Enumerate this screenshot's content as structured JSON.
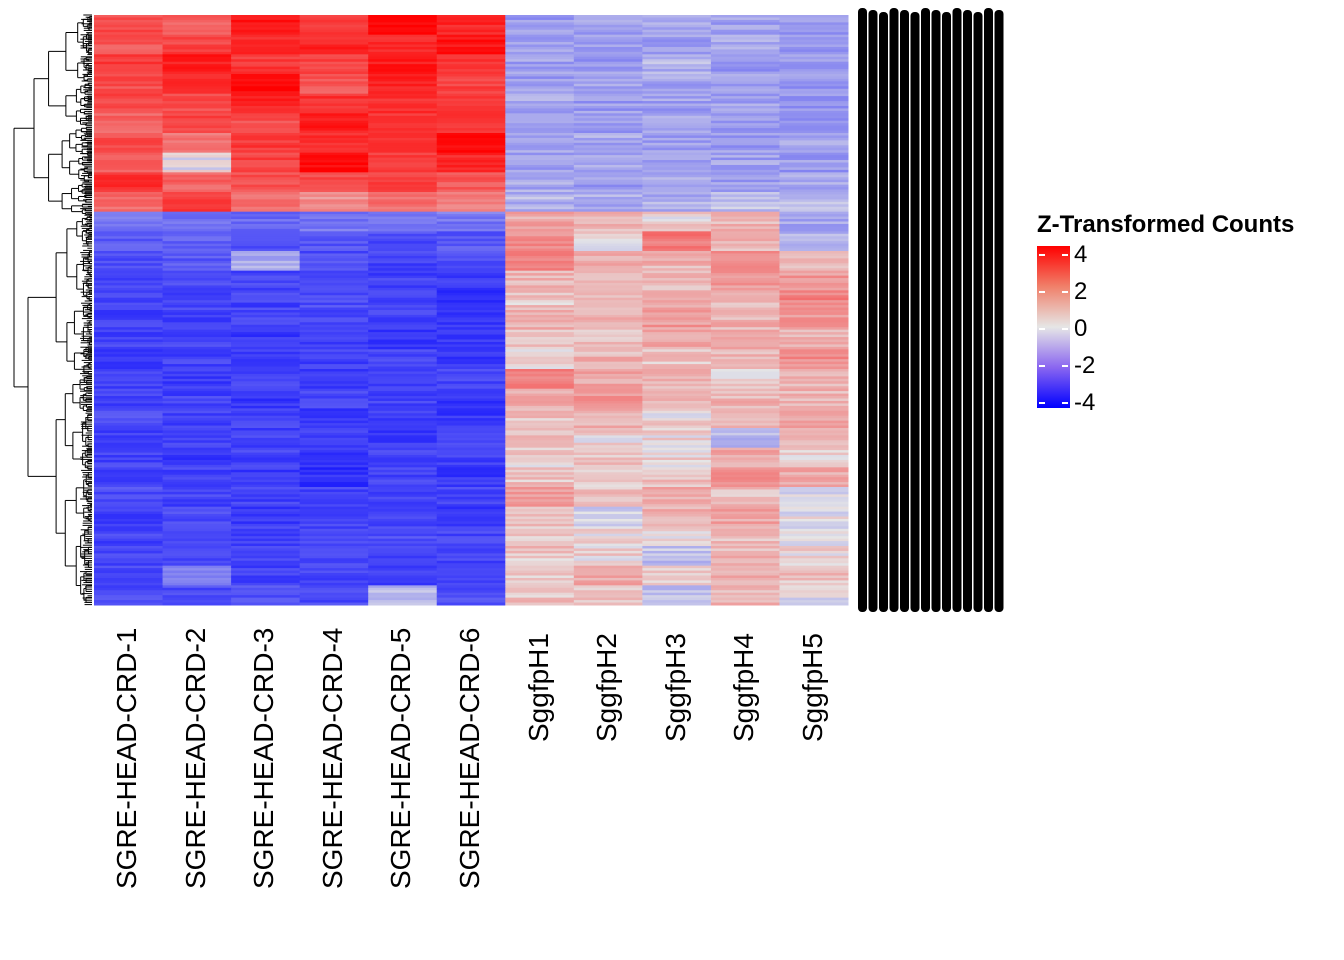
{
  "chart_data": {
    "type": "heatmap",
    "title": "",
    "columns": [
      "SGRE-HEAD-CRD-1",
      "SGRE-HEAD-CRD-2",
      "SGRE-HEAD-CRD-3",
      "SGRE-HEAD-CRD-4",
      "SGRE-HEAD-CRD-5",
      "SGRE-HEAD-CRD-6",
      "SggfpH1",
      "SggfpH2",
      "SggfpH3",
      "SggfpH4",
      "SggfpH5"
    ],
    "row_labels_legible": false,
    "row_dendrogram": true,
    "values": [
      [
        2.5,
        2.0,
        3.5,
        2.8,
        3.8,
        3.2,
        -1.0,
        -0.9,
        -0.8,
        -0.9,
        -1.0
      ],
      [
        2.2,
        2.6,
        3.0,
        3.2,
        3.0,
        3.6,
        -0.8,
        -1.0,
        -0.9,
        -0.8,
        -1.1
      ],
      [
        2.8,
        3.4,
        2.8,
        2.6,
        3.4,
        3.0,
        -0.9,
        -1.0,
        -0.6,
        -1.0,
        -0.9
      ],
      [
        2.4,
        3.0,
        3.8,
        2.2,
        3.2,
        2.6,
        -1.0,
        -0.9,
        -0.8,
        -0.9,
        -1.0
      ],
      [
        2.6,
        2.4,
        3.2,
        3.0,
        3.0,
        2.8,
        -0.8,
        -1.0,
        -0.9,
        -0.9,
        -1.1
      ],
      [
        2.0,
        2.6,
        2.4,
        3.4,
        2.8,
        2.8,
        -1.0,
        -1.0,
        -0.9,
        -1.0,
        -1.0
      ],
      [
        2.4,
        1.6,
        2.8,
        3.0,
        3.0,
        3.8,
        -0.9,
        -0.8,
        -0.9,
        -1.0,
        -0.9
      ],
      [
        2.2,
        0.0,
        2.6,
        3.8,
        2.8,
        3.2,
        -0.9,
        -0.9,
        -0.9,
        -0.9,
        -1.0
      ],
      [
        3.0,
        2.0,
        2.4,
        2.4,
        2.6,
        2.2,
        -0.8,
        -1.0,
        -0.8,
        -0.9,
        -0.8
      ],
      [
        1.8,
        2.8,
        1.8,
        1.2,
        1.8,
        1.6,
        -0.6,
        -0.7,
        -0.7,
        -0.4,
        -0.4
      ],
      [
        -1.6,
        -1.6,
        -1.8,
        -1.6,
        -1.8,
        -1.6,
        0.8,
        0.6,
        0.2,
        0.6,
        -0.8
      ],
      [
        -2.2,
        -2.0,
        -2.4,
        -2.2,
        -2.4,
        -2.2,
        1.2,
        0.2,
        1.6,
        0.6,
        -0.6
      ],
      [
        -2.4,
        -2.2,
        -0.8,
        -2.4,
        -2.6,
        -2.4,
        1.4,
        0.8,
        0.6,
        1.4,
        0.4
      ],
      [
        -2.6,
        -2.4,
        -2.6,
        -2.6,
        -2.6,
        -2.8,
        0.6,
        0.4,
        0.6,
        1.0,
        1.0
      ],
      [
        -2.6,
        -2.6,
        -2.6,
        -2.4,
        -2.6,
        -3.0,
        0.4,
        0.6,
        0.8,
        0.4,
        1.4
      ],
      [
        -2.6,
        -2.8,
        -2.6,
        -2.6,
        -2.6,
        -2.8,
        0.6,
        0.8,
        1.0,
        0.6,
        1.0
      ],
      [
        -2.6,
        -2.6,
        -2.8,
        -2.6,
        -2.8,
        -2.8,
        0.4,
        0.4,
        0.8,
        1.0,
        0.6
      ],
      [
        -2.8,
        -2.6,
        -2.8,
        -2.6,
        -2.6,
        -2.8,
        0.2,
        0.6,
        0.4,
        0.6,
        1.2
      ],
      [
        -2.6,
        -2.8,
        -2.6,
        -2.8,
        -2.8,
        -2.6,
        1.4,
        0.8,
        0.6,
        0.2,
        0.6
      ],
      [
        -2.6,
        -2.6,
        -2.8,
        -2.6,
        -2.6,
        -2.8,
        0.8,
        1.0,
        0.4,
        0.6,
        0.6
      ],
      [
        -2.4,
        -2.6,
        -2.6,
        -2.8,
        -2.6,
        -2.8,
        0.4,
        0.6,
        0.2,
        0.4,
        0.8
      ],
      [
        -2.6,
        -2.6,
        -2.6,
        -2.6,
        -2.8,
        -2.6,
        0.4,
        0.2,
        0.2,
        -0.6,
        0.4
      ],
      [
        -2.6,
        -2.8,
        -2.6,
        -2.8,
        -2.6,
        -2.6,
        0.2,
        0.4,
        0.2,
        0.8,
        0.2
      ],
      [
        -2.6,
        -2.6,
        -2.8,
        -3.0,
        -2.6,
        -2.8,
        0.4,
        0.2,
        0.4,
        1.2,
        0.8
      ],
      [
        -2.4,
        -2.6,
        -2.6,
        -2.6,
        -2.6,
        -2.6,
        1.0,
        0.4,
        0.8,
        0.4,
        0.0
      ],
      [
        -2.6,
        -2.4,
        -2.8,
        -2.6,
        -2.6,
        -2.8,
        0.6,
        -0.4,
        0.6,
        0.8,
        0.0
      ],
      [
        -2.6,
        -2.6,
        -2.6,
        -2.6,
        -2.4,
        -2.6,
        0.2,
        0.2,
        0.2,
        0.4,
        -0.2
      ],
      [
        -2.6,
        -2.6,
        -2.6,
        -2.6,
        -2.6,
        -2.6,
        0.4,
        0.2,
        -0.4,
        0.6,
        0.2
      ],
      [
        -2.4,
        -1.2,
        -2.6,
        -2.6,
        -2.6,
        -2.6,
        0.2,
        0.8,
        0.4,
        0.6,
        0.4
      ],
      [
        -2.4,
        -2.4,
        -2.4,
        -2.4,
        -0.6,
        -2.4,
        0.4,
        0.4,
        -0.4,
        0.6,
        0.0
      ]
    ],
    "color_scale": {
      "min": -4,
      "max": 4,
      "low": "#0000ff",
      "mid": "#e6e6e6",
      "high": "#ff0000"
    },
    "legend": {
      "title": "Z-Transformed Counts",
      "ticks": [
        "4",
        "2",
        "0",
        "-2",
        "-4"
      ],
      "placement": "right"
    }
  }
}
